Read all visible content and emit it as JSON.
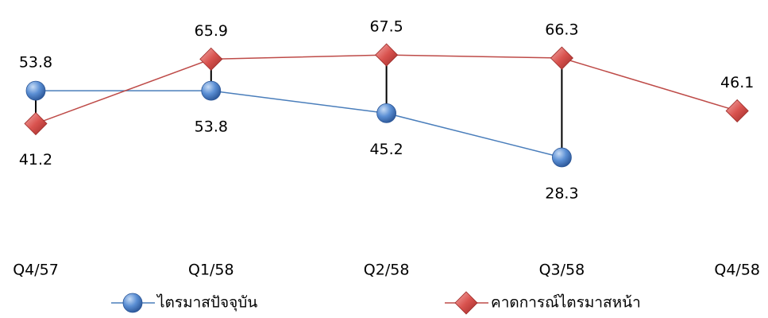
{
  "chart_data": {
    "type": "line",
    "categories": [
      "Q4/57",
      "Q1/58",
      "Q2/58",
      "Q3/58",
      "Q4/58"
    ],
    "series": [
      {
        "name": "ไตรมาสปัจจุบัน",
        "color": "#4a7ebb",
        "marker": "circle",
        "values": [
          53.8,
          53.8,
          45.2,
          28.3,
          null
        ]
      },
      {
        "name": "คาดการณ์ไตรมาสหน้า",
        "color": "#be4b48",
        "marker": "diamond",
        "values": [
          41.2,
          65.9,
          67.5,
          66.3,
          46.1
        ]
      }
    ],
    "ylim": [
      0,
      80
    ],
    "legend": "bottom"
  }
}
